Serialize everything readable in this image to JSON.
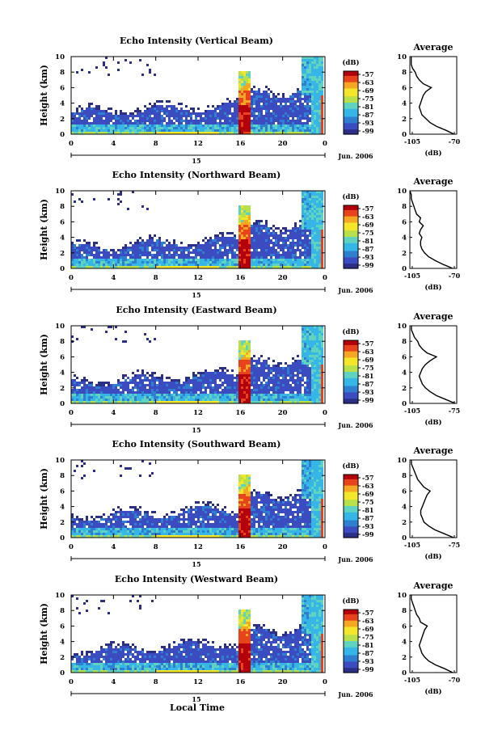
{
  "figure": {
    "xlabel": "Local Time",
    "date_label": "Jun. 2006",
    "day_label": "15",
    "ylabel": "Height (km)",
    "cbar_unit": "(dB)",
    "avg_title": "Average",
    "avg_xlabel": "(dB)"
  },
  "colors": {
    "scale": [
      "#2b2f86",
      "#3b4cc0",
      "#2f7fd0",
      "#35b6e6",
      "#5fd3c0",
      "#b8e04a",
      "#f4e62a",
      "#f5a623",
      "#e8431a",
      "#b3000b"
    ]
  },
  "chart_data": [
    {
      "type": "heatmap",
      "title": "Echo Intensity (Vertical Beam)",
      "x_ticks": [
        "0",
        "4",
        "8",
        "12",
        "16",
        "20",
        "0"
      ],
      "y_ticks": [
        "0",
        "2",
        "4",
        "6",
        "8",
        "10"
      ],
      "xlim": [
        0,
        24
      ],
      "ylim": [
        0,
        10
      ],
      "cbar_ticks": [
        "-57",
        "-63",
        "-69",
        "-75",
        "-81",
        "-87",
        "-93",
        "-99"
      ],
      "avg_profile": {
        "x_ticks": [
          "-105",
          "-70"
        ],
        "y_ticks": [
          "0",
          "2",
          "4",
          "6",
          "8",
          "10"
        ],
        "xlim": [
          -105,
          -70
        ],
        "ylim": [
          0,
          10
        ],
        "height": [
          0,
          0.5,
          1,
          1.5,
          2,
          2.5,
          3,
          3.5,
          4,
          4.5,
          5,
          5.5,
          6,
          6.5,
          7,
          7.5,
          8,
          8.5,
          9,
          9.5,
          10
        ],
        "db": [
          -72,
          -78,
          -85,
          -90,
          -93,
          -96,
          -97,
          -98,
          -97,
          -96,
          -95,
          -93,
          -89,
          -95,
          -98,
          -100,
          -101,
          -103,
          -104,
          -104,
          -104
        ]
      }
    },
    {
      "type": "heatmap",
      "title": "Echo Intensity (Northward Beam)",
      "x_ticks": [
        "0",
        "4",
        "8",
        "12",
        "16",
        "20",
        "0"
      ],
      "y_ticks": [
        "0",
        "2",
        "4",
        "6",
        "8",
        "10"
      ],
      "xlim": [
        0,
        24
      ],
      "ylim": [
        0,
        10
      ],
      "cbar_ticks": [
        "-57",
        "-63",
        "-69",
        "-75",
        "-81",
        "-87",
        "-93",
        "-99"
      ],
      "avg_profile": {
        "x_ticks": [
          "-105",
          "-70"
        ],
        "y_ticks": [
          "0",
          "2",
          "4",
          "6",
          "8",
          "10"
        ],
        "xlim": [
          -105,
          -70
        ],
        "ylim": [
          0,
          10
        ],
        "height": [
          0,
          0.5,
          1,
          1.5,
          2,
          2.5,
          3,
          3.5,
          4,
          4.5,
          5,
          5.5,
          6,
          6.5,
          7,
          7.5,
          8,
          8.5,
          9,
          9.5,
          10
        ],
        "db": [
          -73,
          -80,
          -86,
          -91,
          -94,
          -96,
          -97,
          -97,
          -96,
          -98,
          -97,
          -95,
          -98,
          -97,
          -100,
          -101,
          -102,
          -103,
          -104,
          -104,
          -105
        ]
      }
    },
    {
      "type": "heatmap",
      "title": "Echo Intensity (Eastward Beam)",
      "x_ticks": [
        "0",
        "4",
        "8",
        "12",
        "16",
        "20",
        "0"
      ],
      "y_ticks": [
        "0",
        "2",
        "4",
        "6",
        "8",
        "10"
      ],
      "xlim": [
        0,
        24
      ],
      "ylim": [
        0,
        10
      ],
      "cbar_ticks": [
        "-57",
        "-63",
        "-69",
        "-75",
        "-81",
        "-87",
        "-93",
        "-99"
      ],
      "avg_profile": {
        "x_ticks": [
          "-105",
          "-75"
        ],
        "y_ticks": [
          "0",
          "2",
          "4",
          "6",
          "8",
          "10"
        ],
        "xlim": [
          -105,
          -75
        ],
        "ylim": [
          0,
          10
        ],
        "height": [
          0,
          0.5,
          1,
          1.5,
          2,
          2.5,
          3,
          3.5,
          4,
          4.5,
          5,
          5.5,
          6,
          6.5,
          7,
          7.5,
          8,
          8.5,
          9,
          9.5,
          10
        ],
        "db": [
          -76,
          -82,
          -88,
          -92,
          -95,
          -97,
          -98,
          -99,
          -98,
          -97,
          -95,
          -92,
          -88,
          -94,
          -97,
          -99,
          -100,
          -102,
          -103,
          -104,
          -104
        ]
      }
    },
    {
      "type": "heatmap",
      "title": "Echo Intensity (Southward Beam)",
      "x_ticks": [
        "0",
        "4",
        "8",
        "12",
        "16",
        "20",
        "0"
      ],
      "y_ticks": [
        "0",
        "2",
        "4",
        "6",
        "8",
        "10"
      ],
      "xlim": [
        0,
        24
      ],
      "ylim": [
        0,
        10
      ],
      "cbar_ticks": [
        "-57",
        "-63",
        "-69",
        "-75",
        "-81",
        "-87",
        "-93",
        "-99"
      ],
      "avg_profile": {
        "x_ticks": [
          "-105",
          "-75"
        ],
        "y_ticks": [
          "0",
          "2",
          "4",
          "6",
          "8",
          "10"
        ],
        "xlim": [
          -105,
          -75
        ],
        "ylim": [
          0,
          10
        ],
        "height": [
          0,
          0.5,
          1,
          1.5,
          2,
          2.5,
          3,
          3.5,
          4,
          4.5,
          5,
          5.5,
          6,
          6.5,
          7,
          7.5,
          8,
          8.5,
          9,
          9.5,
          10
        ],
        "db": [
          -77,
          -83,
          -89,
          -93,
          -96,
          -97,
          -98,
          -98,
          -97,
          -96,
          -95,
          -94,
          -92,
          -96,
          -98,
          -100,
          -101,
          -102,
          -103,
          -104,
          -104
        ]
      }
    },
    {
      "type": "heatmap",
      "title": "Echo Intensity (Westward Beam)",
      "x_ticks": [
        "0",
        "4",
        "8",
        "12",
        "16",
        "20",
        "0"
      ],
      "y_ticks": [
        "0",
        "2",
        "4",
        "6",
        "8",
        "10"
      ],
      "xlim": [
        0,
        24
      ],
      "ylim": [
        0,
        10
      ],
      "cbar_ticks": [
        "-57",
        "-63",
        "-69",
        "-75",
        "-81",
        "-87",
        "-93",
        "-99"
      ],
      "avg_profile": {
        "x_ticks": [
          "-105",
          "-70"
        ],
        "y_ticks": [
          "0",
          "2",
          "4",
          "6",
          "8",
          "10"
        ],
        "xlim": [
          -105,
          -70
        ],
        "ylim": [
          0,
          10
        ],
        "height": [
          0,
          0.5,
          1,
          1.5,
          2,
          2.5,
          3,
          3.5,
          4,
          4.5,
          5,
          5.5,
          6,
          6.5,
          7,
          7.5,
          8,
          8.5,
          9,
          9.5,
          10
        ],
        "db": [
          -73,
          -79,
          -86,
          -91,
          -94,
          -96,
          -97,
          -98,
          -97,
          -96,
          -95,
          -94,
          -92,
          -97,
          -98,
          -100,
          -101,
          -102,
          -103,
          -104,
          -104
        ]
      }
    }
  ]
}
